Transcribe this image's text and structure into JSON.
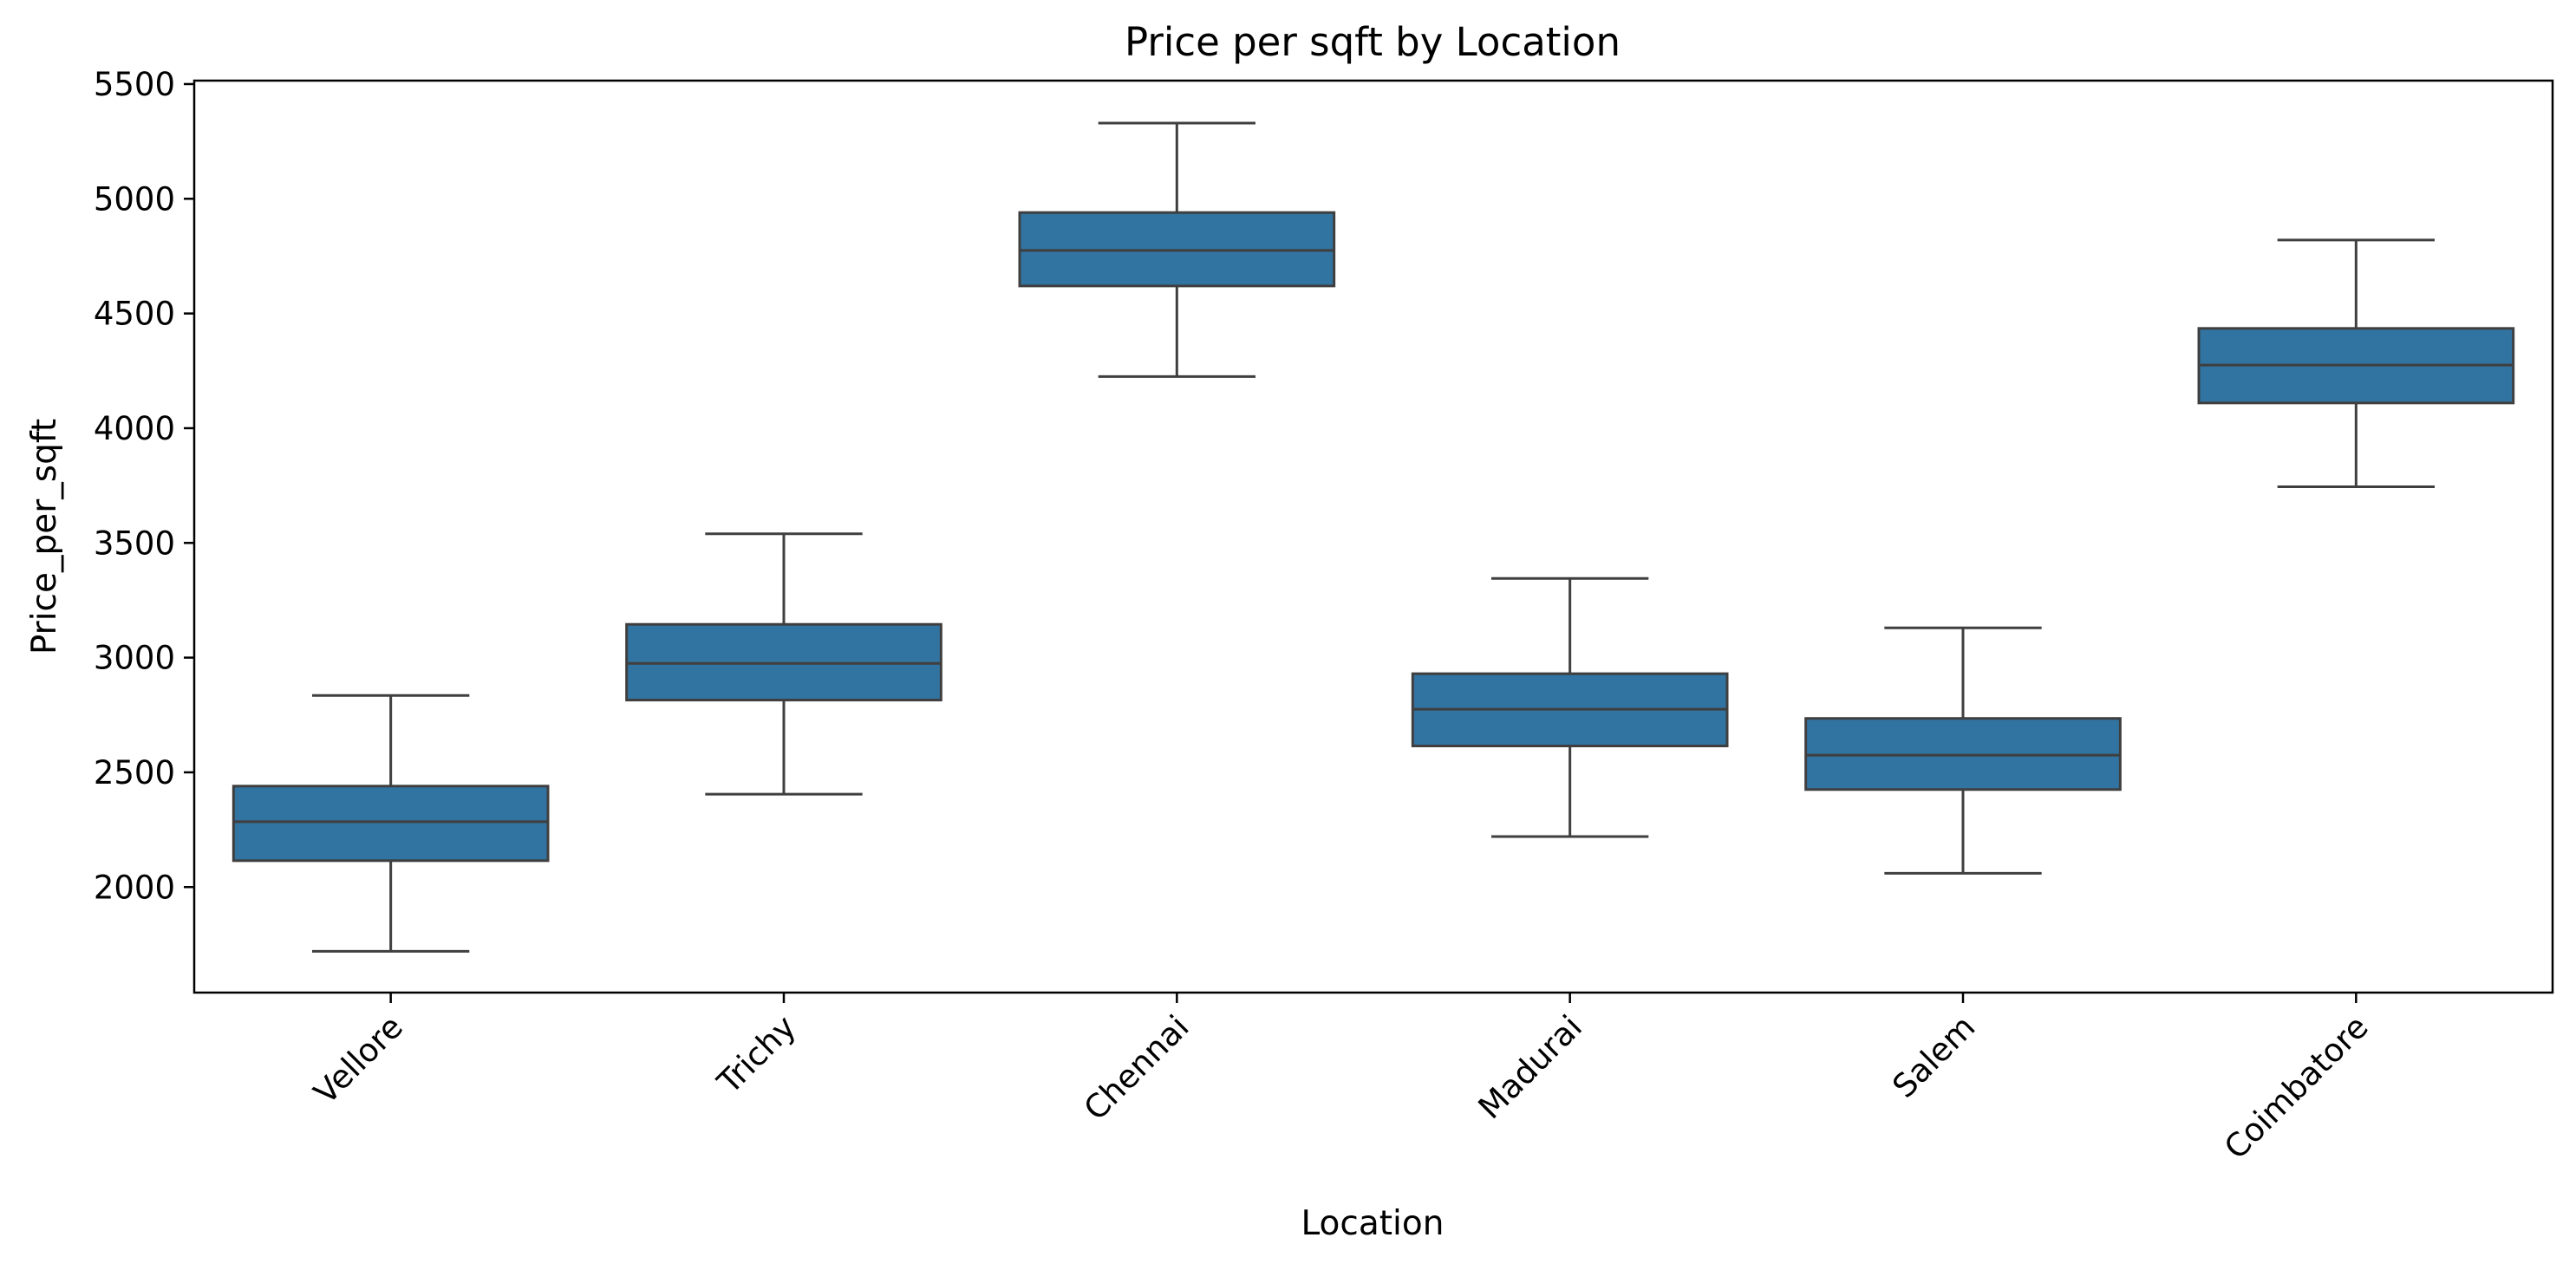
{
  "chart_data": {
    "type": "box",
    "title": "Price per sqft by Location",
    "xlabel": "Location",
    "ylabel": "Price_per_sqft",
    "ylim": [
      1540,
      5515
    ],
    "yticks": [
      2000,
      2500,
      3000,
      3500,
      4000,
      4500,
      5000,
      5500
    ],
    "grid": false,
    "box_color": "#3274a1",
    "line_color": "#3f3f3f",
    "categories": [
      "Vellore",
      "Trichy",
      "Chennai",
      "Madurai",
      "Salem",
      "Coimbatore"
    ],
    "boxes": [
      {
        "category": "Vellore",
        "whisker_low": 1720,
        "q1": 2115,
        "median": 2285,
        "q3": 2440,
        "whisker_high": 2835
      },
      {
        "category": "Trichy",
        "whisker_low": 2405,
        "q1": 2815,
        "median": 2975,
        "q3": 3145,
        "whisker_high": 3540
      },
      {
        "category": "Chennai",
        "whisker_low": 4225,
        "q1": 4620,
        "median": 4775,
        "q3": 4940,
        "whisker_high": 5330
      },
      {
        "category": "Madurai",
        "whisker_low": 2220,
        "q1": 2615,
        "median": 2775,
        "q3": 2930,
        "whisker_high": 3345
      },
      {
        "category": "Salem",
        "whisker_low": 2060,
        "q1": 2425,
        "median": 2575,
        "q3": 2735,
        "whisker_high": 3130
      },
      {
        "category": "Coimbatore",
        "whisker_low": 3745,
        "q1": 4110,
        "median": 4275,
        "q3": 4435,
        "whisker_high": 4820
      }
    ]
  }
}
